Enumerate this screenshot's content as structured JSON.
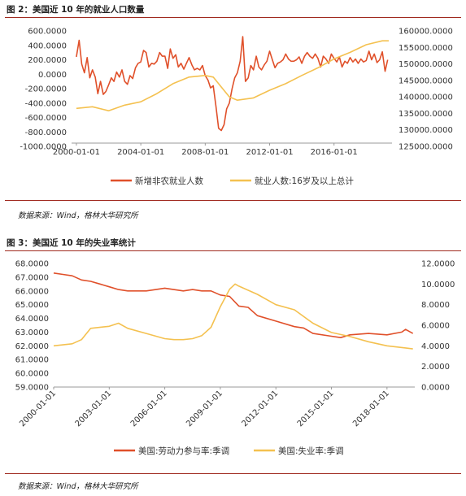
{
  "figure1": {
    "title": "图 2：美国近 10 年的就业人口数量",
    "source": "数据来源：Wind，格林大华研究所"
  },
  "figure2": {
    "title": "图 3：美国近 10 年的失业率统计",
    "source": "数据来源：Wind，格林大华研究所"
  },
  "colors": {
    "primary": "#e0502a",
    "secondary": "#f4c150",
    "rule": "#a02a1f"
  },
  "chart_data": [
    {
      "type": "line",
      "x_ticks": [
        "2000-01-01",
        "2004-01-01",
        "2008-01-01",
        "2012-01-01",
        "2016-01-01"
      ],
      "y_left_ticks": [
        "600.0000",
        "400.0000",
        "200.0000",
        "0.0000",
        "-200.0000",
        "-400.0000",
        "-600.0000",
        "-800.0000",
        "-1000.0000"
      ],
      "y_right_ticks": [
        "160000.0000",
        "155000.0000",
        "150000.0000",
        "145000.0000",
        "140000.0000",
        "135000.0000",
        "130000.0000",
        "125000.0000"
      ],
      "y_left_lim": [
        -1000,
        600
      ],
      "y_right_lim": [
        125000,
        160000
      ],
      "x_lim": [
        1999.7,
        2019.6
      ],
      "grid": false,
      "legend_position": "bottom",
      "series": [
        {
          "name": "新增非农就业人数",
          "axis": "left",
          "x": [
            2000.0,
            2000.17,
            2000.33,
            2000.5,
            2000.67,
            2000.83,
            2001.0,
            2001.17,
            2001.33,
            2001.5,
            2001.67,
            2001.83,
            2002.0,
            2002.17,
            2002.33,
            2002.5,
            2002.67,
            2002.83,
            2003.0,
            2003.17,
            2003.33,
            2003.5,
            2003.67,
            2003.83,
            2004.0,
            2004.17,
            2004.33,
            2004.5,
            2004.67,
            2004.83,
            2005.0,
            2005.17,
            2005.33,
            2005.5,
            2005.67,
            2005.83,
            2006.0,
            2006.17,
            2006.33,
            2006.5,
            2006.67,
            2006.83,
            2007.0,
            2007.17,
            2007.33,
            2007.5,
            2007.67,
            2007.83,
            2008.0,
            2008.17,
            2008.33,
            2008.5,
            2008.67,
            2008.83,
            2009.0,
            2009.17,
            2009.33,
            2009.5,
            2009.67,
            2009.83,
            2010.0,
            2010.17,
            2010.33,
            2010.5,
            2010.67,
            2010.83,
            2011.0,
            2011.17,
            2011.33,
            2011.5,
            2011.67,
            2011.83,
            2012.0,
            2012.17,
            2012.33,
            2012.5,
            2012.67,
            2012.83,
            2013.0,
            2013.17,
            2013.33,
            2013.5,
            2013.67,
            2013.83,
            2014.0,
            2014.17,
            2014.33,
            2014.5,
            2014.67,
            2014.83,
            2015.0,
            2015.17,
            2015.33,
            2015.5,
            2015.67,
            2015.83,
            2016.0,
            2016.17,
            2016.33,
            2016.5,
            2016.67,
            2016.83,
            2017.0,
            2017.17,
            2017.33,
            2017.5,
            2017.67,
            2017.83,
            2018.0,
            2018.17,
            2018.33,
            2018.5,
            2018.67,
            2018.83,
            2019.0,
            2019.17,
            2019.33
          ],
          "values": [
            240,
            470,
            140,
            20,
            230,
            -50,
            60,
            -40,
            -270,
            -100,
            -280,
            -240,
            -150,
            -50,
            -100,
            30,
            -40,
            60,
            -100,
            -140,
            -20,
            -60,
            90,
            150,
            170,
            330,
            300,
            100,
            150,
            140,
            180,
            300,
            250,
            250,
            80,
            350,
            220,
            270,
            100,
            150,
            70,
            150,
            230,
            130,
            60,
            80,
            60,
            120,
            -20,
            -80,
            -190,
            -160,
            -450,
            -750,
            -780,
            -700,
            -480,
            -400,
            -200,
            -50,
            20,
            180,
            520,
            -100,
            -50,
            120,
            60,
            250,
            100,
            60,
            130,
            180,
            320,
            200,
            90,
            150,
            170,
            200,
            280,
            210,
            180,
            180,
            200,
            240,
            150,
            250,
            300,
            250,
            220,
            280,
            220,
            100,
            250,
            210,
            150,
            280,
            220,
            170,
            240,
            100,
            180,
            150,
            230,
            170,
            210,
            150,
            210,
            170,
            190,
            320,
            200,
            280,
            160,
            200,
            310,
            40,
            200
          ],
          "color": "#e0502a"
        },
        {
          "name": "就业人数:16岁及以上总计",
          "axis": "right",
          "x": [
            2000.0,
            2001.0,
            2002.0,
            2003.0,
            2004.0,
            2005.0,
            2006.0,
            2007.0,
            2008.0,
            2008.5,
            2009.0,
            2009.5,
            2010.0,
            2011.0,
            2012.0,
            2013.0,
            2014.0,
            2015.0,
            2016.0,
            2017.0,
            2018.0,
            2019.0,
            2019.4
          ],
          "values": [
            136500,
            137000,
            135800,
            137500,
            138500,
            141000,
            144000,
            146000,
            146500,
            146000,
            143000,
            140000,
            139000,
            139700,
            142000,
            144000,
            146500,
            148800,
            151500,
            153500,
            155800,
            157000,
            157000
          ],
          "color": "#f4c150"
        }
      ]
    },
    {
      "type": "line",
      "x_ticks": [
        "2000-01-01",
        "2003-01-01",
        "2006-01-01",
        "2009-01-01",
        "2012-01-01",
        "2015-01-01",
        "2018-01-01"
      ],
      "y_left_ticks": [
        "68.0000",
        "67.0000",
        "66.0000",
        "65.0000",
        "64.0000",
        "63.0000",
        "62.0000",
        "61.0000",
        "60.0000",
        "59.0000"
      ],
      "y_right_ticks": [
        "12.0000",
        "10.0000",
        "8.0000",
        "6.0000",
        "4.0000",
        "2.0000",
        "0.0000"
      ],
      "y_left_lim": [
        59,
        68
      ],
      "y_right_lim": [
        0,
        12
      ],
      "x_lim": [
        2000.0,
        2019.5
      ],
      "grid": false,
      "legend_position": "bottom",
      "series": [
        {
          "name": "美国:劳动力参与率:季调",
          "axis": "left",
          "x": [
            2000.0,
            2000.5,
            2001.0,
            2001.5,
            2002.0,
            2002.5,
            2003.0,
            2003.5,
            2004.0,
            2005.0,
            2006.0,
            2007.0,
            2007.5,
            2008.0,
            2008.5,
            2009.0,
            2009.5,
            2010.0,
            2010.5,
            2011.0,
            2012.0,
            2013.0,
            2013.5,
            2014.0,
            2015.0,
            2015.5,
            2016.0,
            2017.0,
            2018.0,
            2018.8,
            2019.0,
            2019.4
          ],
          "values": [
            67.3,
            67.2,
            67.1,
            66.8,
            66.7,
            66.5,
            66.3,
            66.1,
            66.0,
            66.0,
            66.2,
            66.0,
            66.1,
            66.0,
            66.0,
            65.7,
            65.6,
            64.9,
            64.8,
            64.2,
            63.8,
            63.4,
            63.3,
            62.9,
            62.7,
            62.6,
            62.8,
            62.9,
            62.8,
            63.0,
            63.2,
            62.9
          ],
          "color": "#e0502a"
        },
        {
          "name": "美国:失业率:季调",
          "axis": "right",
          "x": [
            2000.0,
            2001.0,
            2001.5,
            2002.0,
            2003.0,
            2003.5,
            2004.0,
            2005.0,
            2006.0,
            2006.5,
            2007.0,
            2007.5,
            2008.0,
            2008.5,
            2009.0,
            2009.5,
            2009.8,
            2010.0,
            2011.0,
            2012.0,
            2013.0,
            2014.0,
            2015.0,
            2016.0,
            2017.0,
            2018.0,
            2019.0,
            2019.4
          ],
          "values": [
            4.0,
            4.2,
            4.6,
            5.7,
            5.9,
            6.2,
            5.7,
            5.2,
            4.7,
            4.6,
            4.6,
            4.7,
            5.0,
            5.8,
            7.8,
            9.5,
            10.0,
            9.8,
            9.0,
            8.0,
            7.5,
            6.2,
            5.3,
            4.9,
            4.4,
            4.0,
            3.8,
            3.7
          ],
          "color": "#f4c150"
        }
      ]
    }
  ]
}
